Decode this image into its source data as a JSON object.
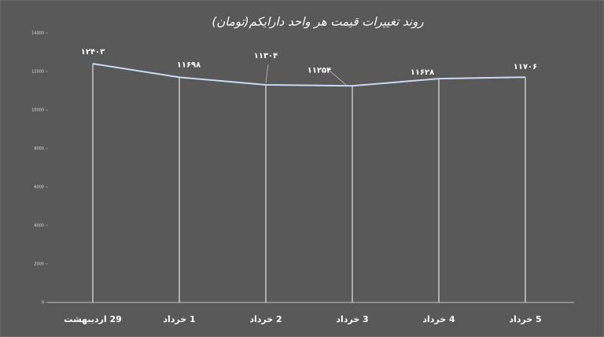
{
  "chart_data": {
    "type": "line",
    "title": "روند تغییرات قیمت هر واحد دارایکم(تومان)",
    "categories": [
      "29 اردیبهشت",
      "1 خرداد",
      "2 خرداد",
      "3 خرداد",
      "4 خرداد",
      "5 خرداد"
    ],
    "values": [
      12403,
      11698,
      11304,
      11254,
      11628,
      11706
    ],
    "value_labels": [
      "۱۲۴۰۳",
      "۱۱۶۹۸",
      "۱۱۳۰۴",
      "۱۱۲۵۴",
      "۱۱۶۲۸",
      "۱۱۷۰۶"
    ],
    "color": "#c9daf0",
    "drop_line_color": "#ffffff",
    "ylim": [
      0,
      14000
    ],
    "yticks": [
      0,
      2000,
      4000,
      6000,
      8000,
      10000,
      12000,
      14000
    ]
  }
}
